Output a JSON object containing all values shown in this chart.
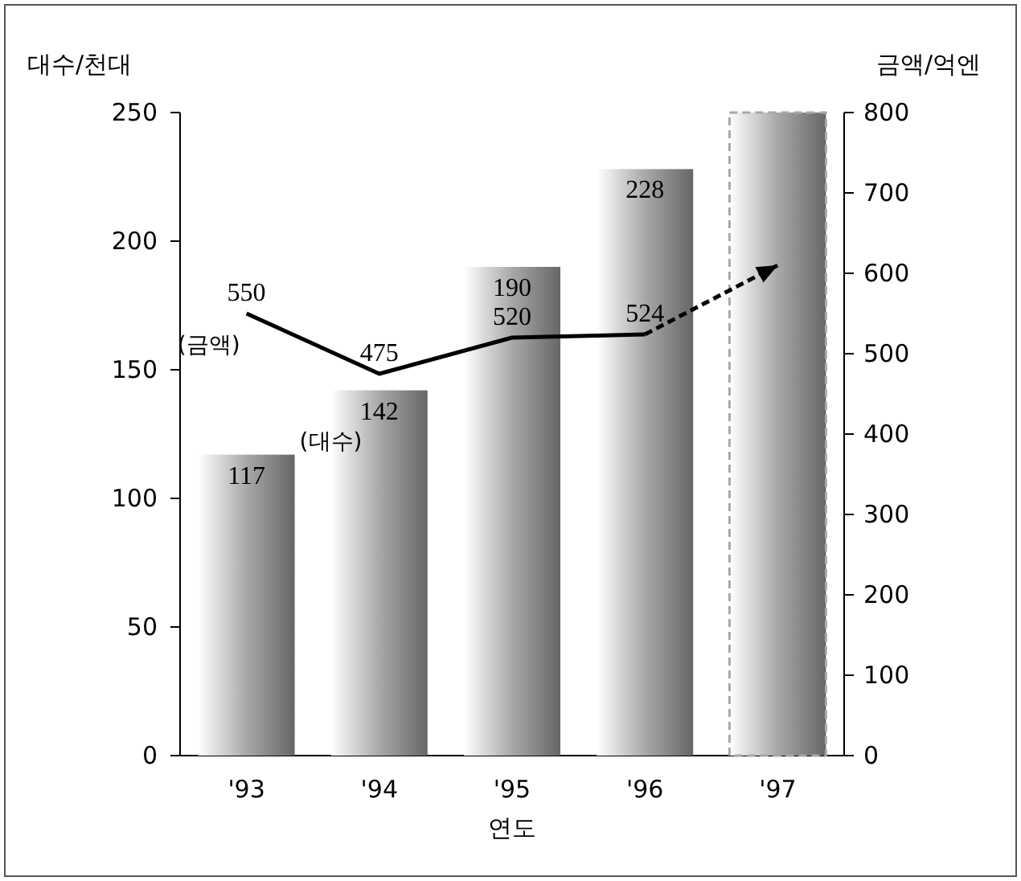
{
  "chart_data": {
    "type": "bar",
    "xlabel": "연도",
    "ylabel": "대수/천대",
    "y2label": "금액/억엔",
    "categories": [
      "'93",
      "'94",
      "'95",
      "'96",
      "'97"
    ],
    "series": [
      {
        "color": "#a8a8a8",
        "line_style": "solid",
        "values": [
          117,
          142,
          190,
          228,
          null
        ],
        "value_labels": [
          "117",
          "142",
          "190",
          "228",
          null
        ]
      },
      {
        "color": "#a8a8a8",
        "line_style": "dashed",
        "values": [
          null,
          null,
          null,
          null,
          250
        ]
      },
      {
        "type": "line",
        "axis": "y2",
        "color": "#000000",
        "line_style": "solid",
        "values": [
          550,
          475,
          520,
          524,
          null
        ],
        "value_labels": [
          "550",
          "475",
          "520",
          "524",
          null
        ]
      },
      {
        "type": "line",
        "axis": "y2",
        "color": "#000000",
        "line_style": "dashed",
        "values": [
          null,
          null,
          null,
          524,
          610
        ]
      }
    ],
    "annotations": [
      "(금액)",
      "(대수)"
    ],
    "ylim": [
      0,
      250
    ],
    "yticks": [
      0,
      50,
      100,
      150,
      200,
      250
    ],
    "y2lim": [
      0,
      800
    ],
    "y2ticks": [
      0,
      100,
      200,
      300,
      400,
      500,
      600,
      700,
      800
    ],
    "marker": "none"
  }
}
